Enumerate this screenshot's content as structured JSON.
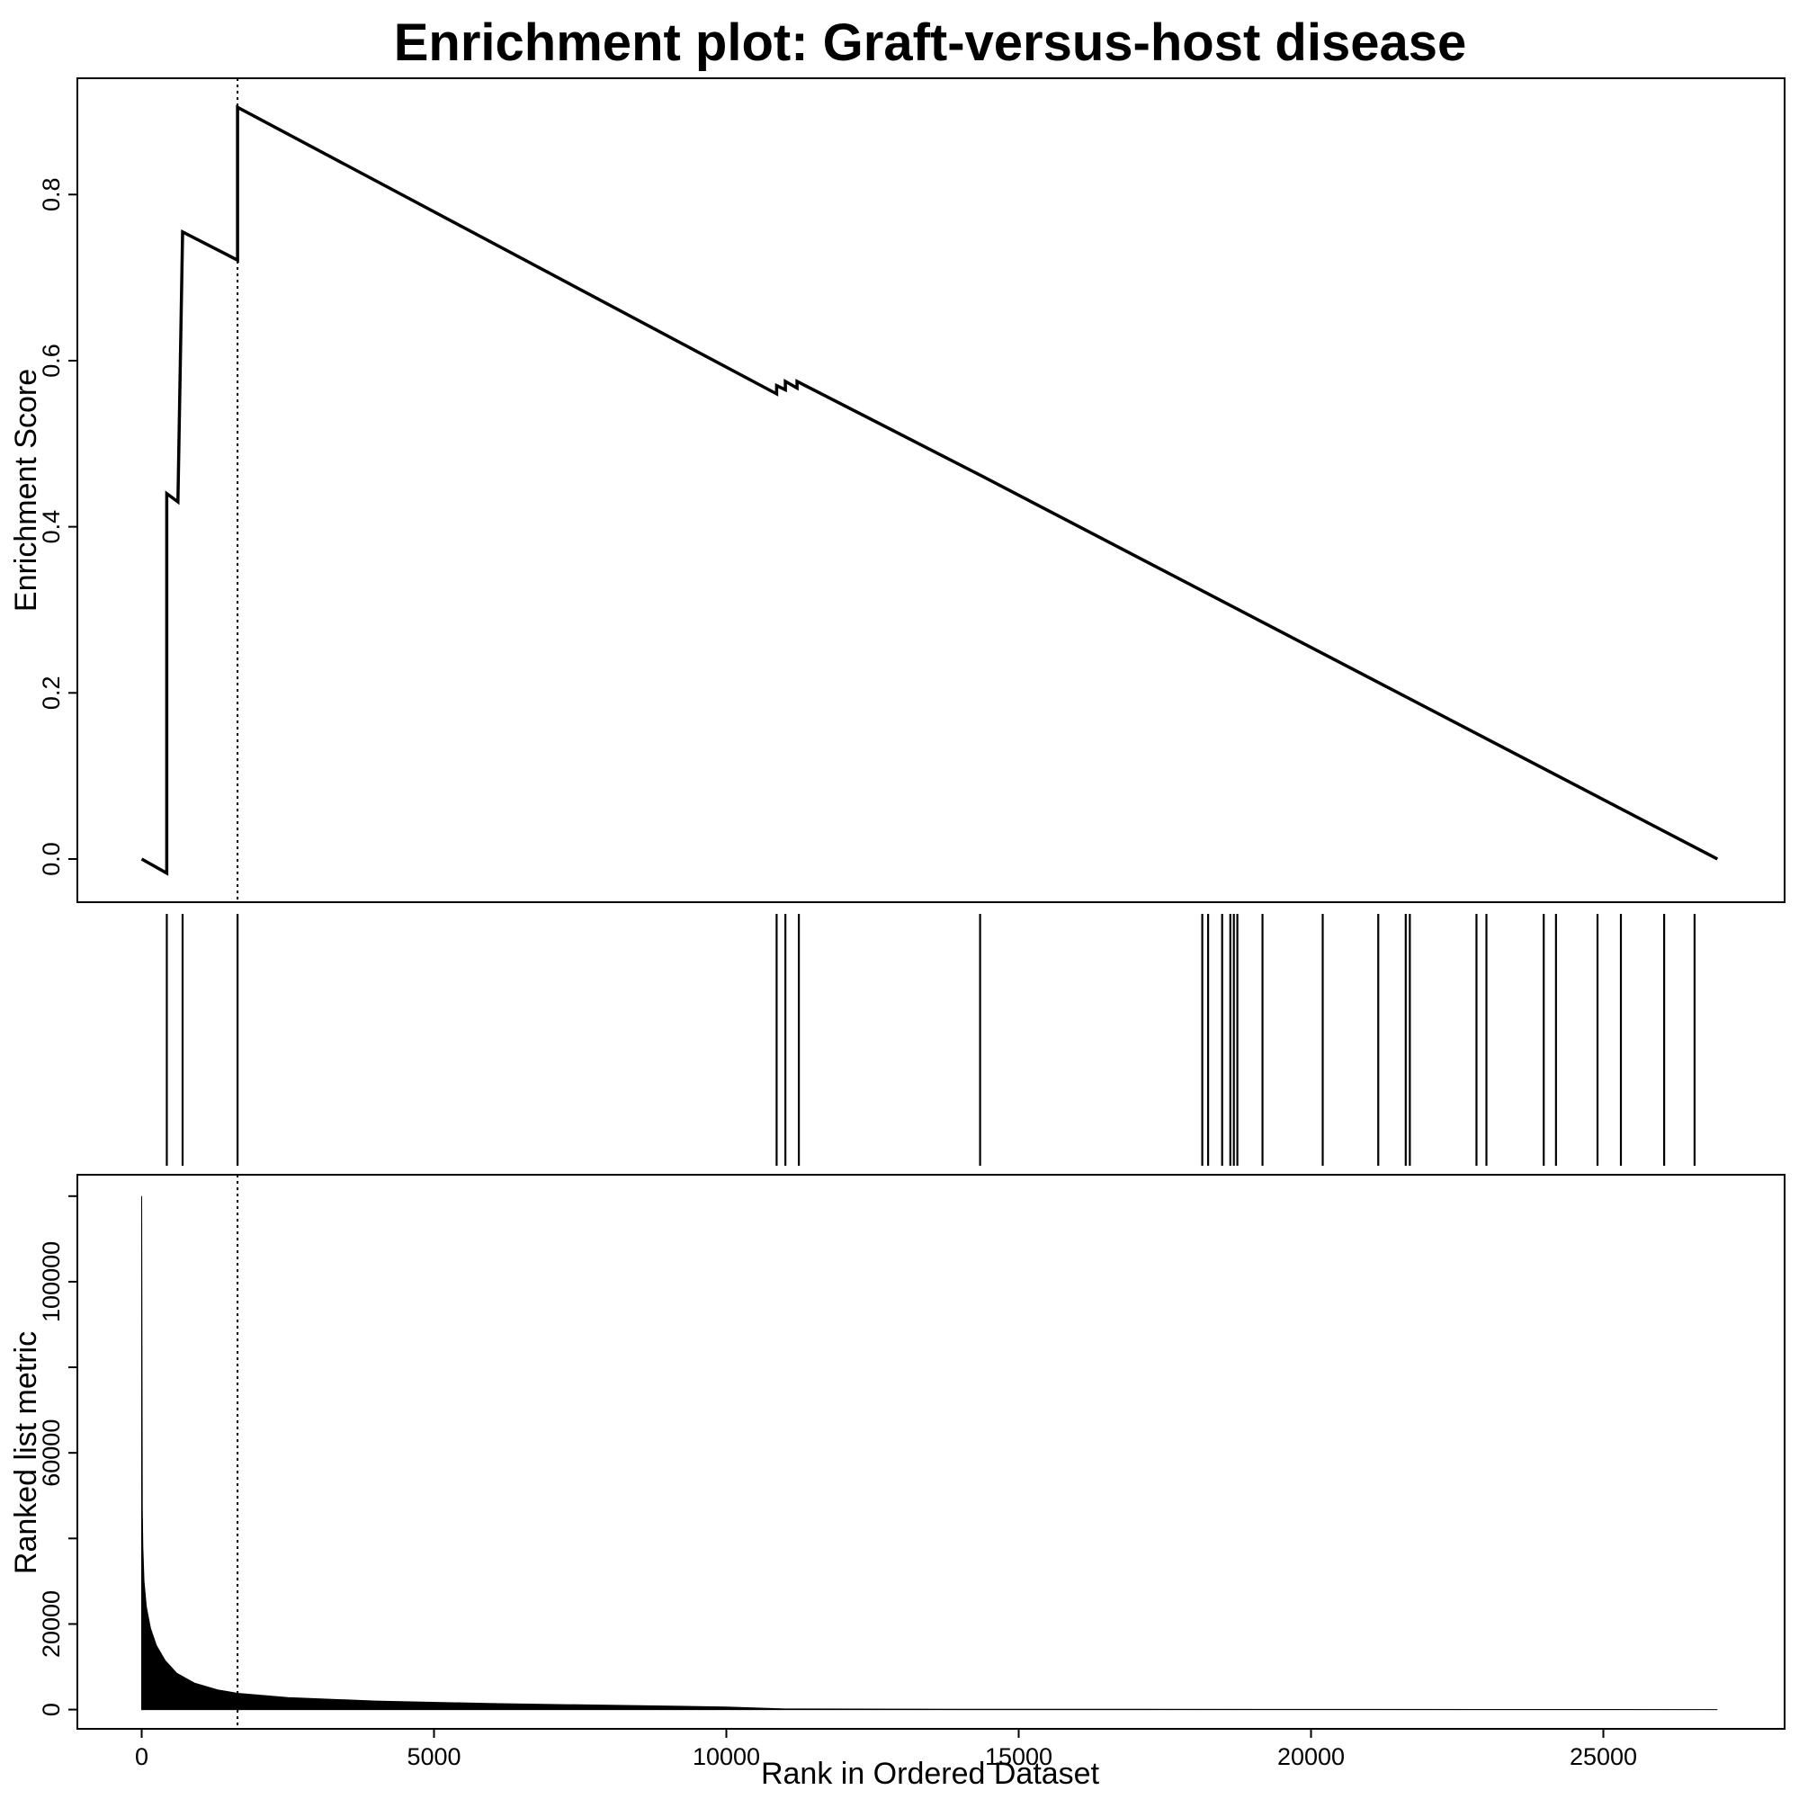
{
  "title": "Enrichment plot: Graft-versus-host disease",
  "colors": {
    "line": "#000000",
    "background": "#ffffff"
  },
  "chart_data": [
    {
      "type": "line",
      "panel": "enrichment-score",
      "ylabel": "Enrichment Score",
      "xlim": [
        -1100,
        28100
      ],
      "ylim": [
        -0.052,
        0.94
      ],
      "yticks": [
        0.0,
        0.2,
        0.4,
        0.6,
        0.8
      ],
      "ytick_labels": [
        "0.0",
        "0.2",
        "0.4",
        "0.6",
        "0.8"
      ],
      "leading_edge_rank": 1640,
      "x": [
        0,
        430,
        430,
        620,
        700,
        1640,
        1640,
        1640,
        10860,
        10860,
        11010,
        11010,
        11210,
        11210,
        14400,
        26950
      ],
      "y": [
        0.0,
        -0.017,
        0.44,
        0.43,
        0.755,
        0.721,
        0.81,
        0.905,
        0.56,
        0.57,
        0.565,
        0.575,
        0.567,
        0.575,
        0.46,
        0.0
      ]
    },
    {
      "type": "hits",
      "panel": "gene-set-hits",
      "positions": [
        430,
        700,
        1640,
        10860,
        11010,
        11240,
        14340,
        18140,
        18240,
        18480,
        18620,
        18680,
        18740,
        19170,
        20200,
        21150,
        21620,
        21690,
        22830,
        23000,
        23980,
        24190,
        24900,
        25300,
        26040,
        26560
      ]
    },
    {
      "type": "area",
      "panel": "ranked-list-metric",
      "ylabel": "Ranked list metric",
      "xlabel": "Rank in Ordered Dataset",
      "xlim": [
        -1100,
        28100
      ],
      "ylim": [
        -4500,
        125000
      ],
      "yticks": [
        0,
        20000,
        40000,
        60000,
        80000,
        100000,
        120000
      ],
      "ytick_labels": [
        "0",
        "20000",
        "",
        "60000",
        "",
        "100000",
        ""
      ],
      "xticks": [
        0,
        5000,
        10000,
        15000,
        20000,
        25000
      ],
      "xtick_labels": [
        "0",
        "5000",
        "10000",
        "15000",
        "20000",
        "25000"
      ],
      "x": [
        0,
        10,
        20,
        40,
        80,
        150,
        250,
        400,
        600,
        900,
        1300,
        1640,
        2500,
        4000,
        6000,
        8000,
        10000,
        11000,
        14000,
        20000,
        26950
      ],
      "y": [
        120000,
        47000,
        38000,
        30000,
        24000,
        19000,
        15000,
        11500,
        8500,
        6200,
        4600,
        3800,
        2800,
        2000,
        1400,
        1000,
        600,
        150,
        80,
        40,
        0
      ]
    }
  ]
}
